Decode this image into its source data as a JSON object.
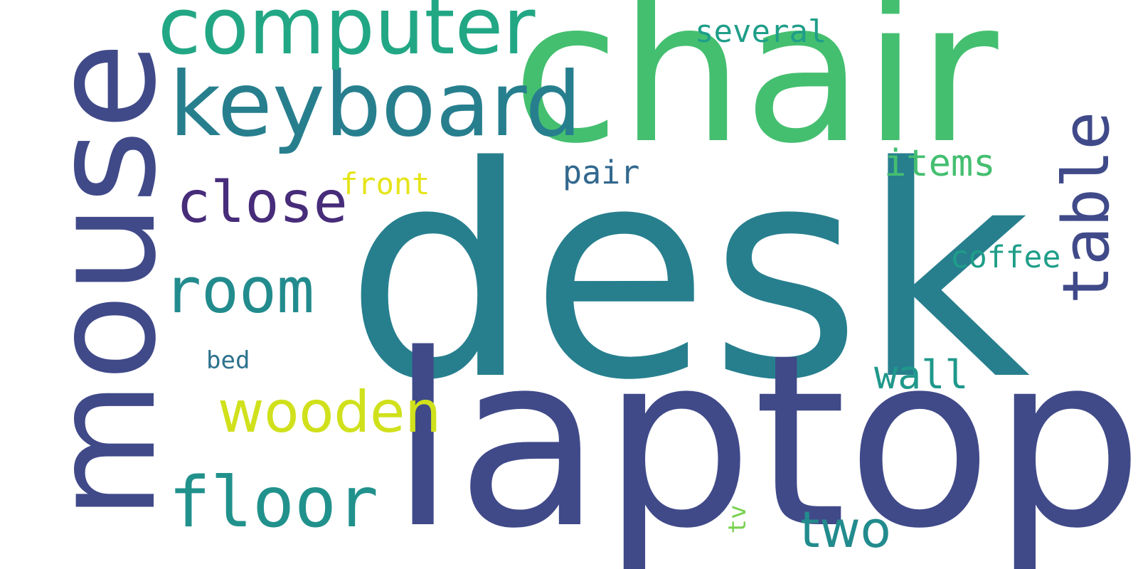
{
  "cloud": {
    "words": [
      {
        "key": "desk",
        "text": "desk",
        "color": "#277f8e"
      },
      {
        "key": "laptop",
        "text": "laptop",
        "color": "#404a89"
      },
      {
        "key": "chair",
        "text": "chair",
        "color": "#44bf70"
      },
      {
        "key": "mouse",
        "text": "mouse",
        "color": "#404a89",
        "orientation": "vertical"
      },
      {
        "key": "keyboard",
        "text": "keyboard",
        "color": "#277f8e"
      },
      {
        "key": "computer",
        "text": "computer",
        "color": "#22a785"
      },
      {
        "key": "table",
        "text": "table",
        "color": "#404a89",
        "orientation": "vertical"
      },
      {
        "key": "room",
        "text": "room",
        "color": "#228b8d"
      },
      {
        "key": "floor",
        "text": "floor",
        "color": "#21918c"
      },
      {
        "key": "wooden",
        "text": "wooden",
        "color": "#d0e11c"
      },
      {
        "key": "close",
        "text": "close",
        "color": "#472c7a"
      },
      {
        "key": "two",
        "text": "two",
        "color": "#228b8d"
      },
      {
        "key": "wall",
        "text": "wall",
        "color": "#1f988b"
      },
      {
        "key": "items",
        "text": "items",
        "color": "#44bf70"
      },
      {
        "key": "pair",
        "text": "pair",
        "color": "#31688e"
      },
      {
        "key": "several",
        "text": "several",
        "color": "#1f9e89"
      },
      {
        "key": "coffee",
        "text": "coffee",
        "color": "#1f9e89"
      },
      {
        "key": "front",
        "text": "front",
        "color": "#e5e419"
      },
      {
        "key": "bed",
        "text": "bed",
        "color": "#2c728e"
      },
      {
        "key": "tv",
        "text": "tv",
        "color": "#7ad151",
        "orientation": "vertical"
      }
    ]
  }
}
